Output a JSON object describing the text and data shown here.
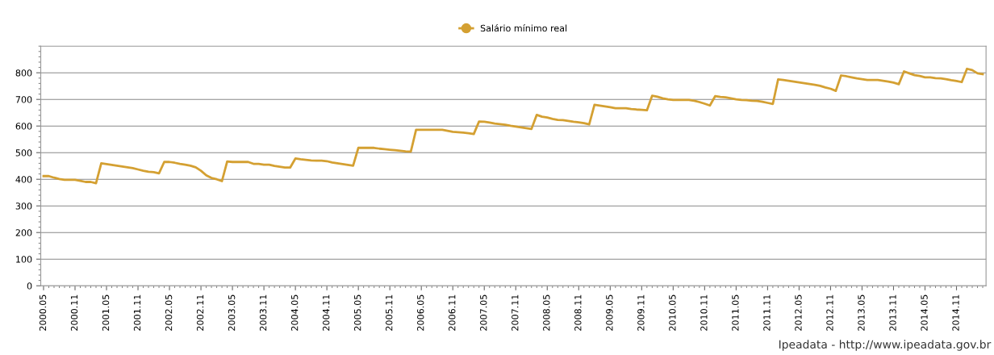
{
  "chart_data": {
    "type": "line",
    "x": [
      "2000-05",
      "2000-06",
      "2000-07",
      "2000-08",
      "2000-09",
      "2000-10",
      "2000-11",
      "2000-12",
      "2001-01",
      "2001-02",
      "2001-03",
      "2001-04",
      "2001-05",
      "2001-06",
      "2001-07",
      "2001-08",
      "2001-09",
      "2001-10",
      "2001-11",
      "2001-12",
      "2002-01",
      "2002-02",
      "2002-03",
      "2002-04",
      "2002-05",
      "2002-06",
      "2002-07",
      "2002-08",
      "2002-09",
      "2002-10",
      "2002-11",
      "2002-12",
      "2003-01",
      "2003-02",
      "2003-03",
      "2003-04",
      "2003-05",
      "2003-06",
      "2003-07",
      "2003-08",
      "2003-09",
      "2003-10",
      "2003-11",
      "2003-12",
      "2004-01",
      "2004-02",
      "2004-03",
      "2004-04",
      "2004-05",
      "2004-06",
      "2004-07",
      "2004-08",
      "2004-09",
      "2004-10",
      "2004-11",
      "2004-12",
      "2005-01",
      "2005-02",
      "2005-03",
      "2005-04",
      "2005-05",
      "2005-06",
      "2005-07",
      "2005-08",
      "2005-09",
      "2005-10",
      "2005-11",
      "2005-12",
      "2006-01",
      "2006-02",
      "2006-03",
      "2006-04",
      "2006-05",
      "2006-06",
      "2006-07",
      "2006-08",
      "2006-09",
      "2006-10",
      "2006-11",
      "2006-12",
      "2007-01",
      "2007-02",
      "2007-03",
      "2007-04",
      "2007-05",
      "2007-06",
      "2007-07",
      "2007-08",
      "2007-09",
      "2007-10",
      "2007-11",
      "2007-12",
      "2008-01",
      "2008-02",
      "2008-03",
      "2008-04",
      "2008-05",
      "2008-06",
      "2008-07",
      "2008-08",
      "2008-09",
      "2008-10",
      "2008-11",
      "2008-12",
      "2009-01",
      "2009-02",
      "2009-03",
      "2009-04",
      "2009-05",
      "2009-06",
      "2009-07",
      "2009-08",
      "2009-09",
      "2009-10",
      "2009-11",
      "2009-12",
      "2010-01",
      "2010-02",
      "2010-03",
      "2010-04",
      "2010-05",
      "2010-06",
      "2010-07",
      "2010-08",
      "2010-09",
      "2010-10",
      "2010-11",
      "2010-12",
      "2011-01",
      "2011-02",
      "2011-03",
      "2011-04",
      "2011-05",
      "2011-06",
      "2011-07",
      "2011-08",
      "2011-09",
      "2011-10",
      "2011-11",
      "2011-12",
      "2012-01",
      "2012-02",
      "2012-03",
      "2012-04",
      "2012-05",
      "2012-06",
      "2012-07",
      "2012-08",
      "2012-09",
      "2012-10",
      "2012-11",
      "2012-12",
      "2013-01",
      "2013-02",
      "2013-03",
      "2013-04",
      "2013-05",
      "2013-06",
      "2013-07",
      "2013-08",
      "2013-09",
      "2013-10",
      "2013-11",
      "2013-12",
      "2014-01",
      "2014-02",
      "2014-03",
      "2014-04",
      "2014-05",
      "2014-06",
      "2014-07",
      "2014-08",
      "2014-09",
      "2014-10",
      "2014-11",
      "2014-12",
      "2015-01",
      "2015-02",
      "2015-03",
      "2015-04"
    ],
    "series": [
      {
        "name": "Salário mínimo real",
        "color": "#d4a032",
        "values": [
          412,
          412,
          406,
          401,
          398,
          398,
          398,
          394,
          390,
          390,
          385,
          460,
          457,
          454,
          451,
          448,
          445,
          442,
          437,
          432,
          428,
          427,
          422,
          465,
          465,
          462,
          458,
          455,
          451,
          445,
          432,
          415,
          405,
          400,
          393,
          467,
          465,
          465,
          465,
          465,
          458,
          458,
          455,
          455,
          450,
          447,
          444,
          444,
          478,
          475,
          473,
          471,
          470,
          470,
          468,
          463,
          460,
          457,
          454,
          451,
          518,
          518,
          518,
          518,
          515,
          513,
          511,
          509,
          507,
          505,
          504,
          586,
          586,
          586,
          586,
          586,
          586,
          582,
          578,
          577,
          575,
          573,
          570,
          617,
          616,
          613,
          609,
          607,
          605,
          601,
          598,
          595,
          592,
          589,
          642,
          635,
          632,
          627,
          623,
          622,
          619,
          616,
          614,
          611,
          606,
          680,
          677,
          674,
          671,
          667,
          667,
          667,
          664,
          662,
          661,
          659,
          714,
          710,
          704,
          700,
          698,
          698,
          698,
          698,
          695,
          690,
          684,
          677,
          712,
          709,
          708,
          704,
          700,
          698,
          697,
          695,
          694,
          691,
          687,
          683,
          775,
          773,
          770,
          767,
          764,
          761,
          758,
          755,
          751,
          745,
          740,
          732,
          790,
          787,
          783,
          779,
          776,
          773,
          773,
          773,
          770,
          767,
          763,
          757,
          805,
          798,
          791,
          788,
          783,
          783,
          780,
          779,
          776,
          772,
          769,
          765,
          815,
          810,
          798,
          795
        ]
      }
    ],
    "xlim": [
      "2000-04-15",
      "2015-04-20"
    ],
    "xticks": [
      {
        "value": "2000-05",
        "label": "2000.05"
      },
      {
        "value": "2000-11",
        "label": "2000.11"
      },
      {
        "value": "2001-05",
        "label": "2001.05"
      },
      {
        "value": "2001-11",
        "label": "2001.11"
      },
      {
        "value": "2002-05",
        "label": "2002.05"
      },
      {
        "value": "2002-11",
        "label": "2002.11"
      },
      {
        "value": "2003-05",
        "label": "2003.05"
      },
      {
        "value": "2003-11",
        "label": "2003.11"
      },
      {
        "value": "2004-05",
        "label": "2004.05"
      },
      {
        "value": "2004-11",
        "label": "2004.11"
      },
      {
        "value": "2005-05",
        "label": "2005.05"
      },
      {
        "value": "2005-11",
        "label": "2005.11"
      },
      {
        "value": "2006-05",
        "label": "2006.05"
      },
      {
        "value": "2006-11",
        "label": "2006.11"
      },
      {
        "value": "2007-05",
        "label": "2007.05"
      },
      {
        "value": "2007-11",
        "label": "2007.11"
      },
      {
        "value": "2008-05",
        "label": "2008.05"
      },
      {
        "value": "2008-11",
        "label": "2008.11"
      },
      {
        "value": "2009-05",
        "label": "2009.05"
      },
      {
        "value": "2009-11",
        "label": "2009.11"
      },
      {
        "value": "2010-05",
        "label": "2010.05"
      },
      {
        "value": "2010-11",
        "label": "2010.11"
      },
      {
        "value": "2011-05",
        "label": "2011.05"
      },
      {
        "value": "2011-11",
        "label": "2011.11"
      },
      {
        "value": "2012-05",
        "label": "2012.05"
      },
      {
        "value": "2012-11",
        "label": "2012.11"
      },
      {
        "value": "2013-05",
        "label": "2013.05"
      },
      {
        "value": "2013-11",
        "label": "2013.11"
      },
      {
        "value": "2014-05",
        "label": "2014.05"
      },
      {
        "value": "2014-11",
        "label": "2014.11"
      }
    ],
    "ylim": [
      0,
      900
    ],
    "yticks": [
      0,
      100,
      200,
      300,
      400,
      500,
      600,
      700,
      800
    ],
    "grid": "y",
    "legend": "top",
    "annotations": [
      "Ipeadata - http://www.ipeadata.gov.br"
    ]
  }
}
